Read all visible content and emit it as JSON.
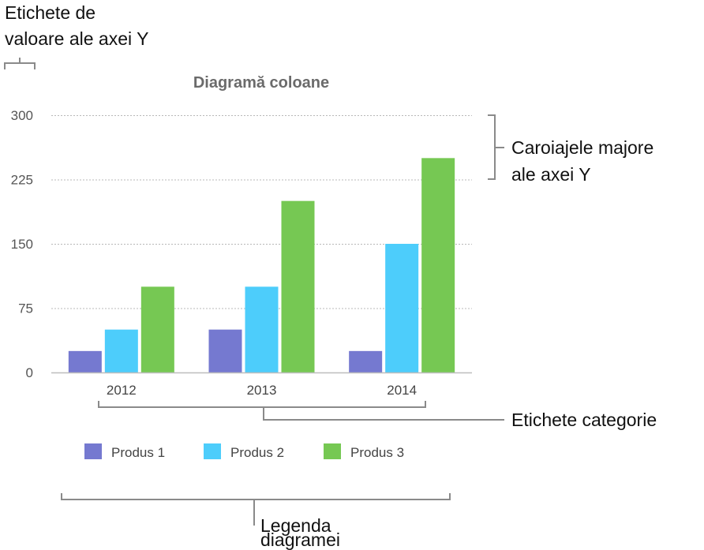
{
  "chart_data": {
    "type": "bar",
    "title": "Diagramă coloane",
    "categories": [
      "2012",
      "2013",
      "2014"
    ],
    "series": [
      {
        "name": "Produs 1",
        "color": "#7579d0",
        "values": [
          25,
          50,
          25
        ]
      },
      {
        "name": "Produs 2",
        "color": "#4dcdfb",
        "values": [
          50,
          100,
          150
        ]
      },
      {
        "name": "Produs 3",
        "color": "#76c853",
        "values": [
          100,
          200,
          250
        ]
      }
    ],
    "yticks": [
      "0",
      "75",
      "150",
      "225",
      "300"
    ],
    "ylim": [
      0,
      300
    ],
    "grid": true,
    "legend_position": "bottom"
  },
  "annotations": {
    "y_value_labels": [
      "Etichete de",
      "valoare ale axei Y"
    ],
    "y_major_gridlines": [
      "Caroiajele majore",
      "ale axei Y"
    ],
    "category_labels": [
      "Etichete categorie"
    ],
    "chart_legend": [
      "Legenda",
      "diagramei"
    ]
  }
}
